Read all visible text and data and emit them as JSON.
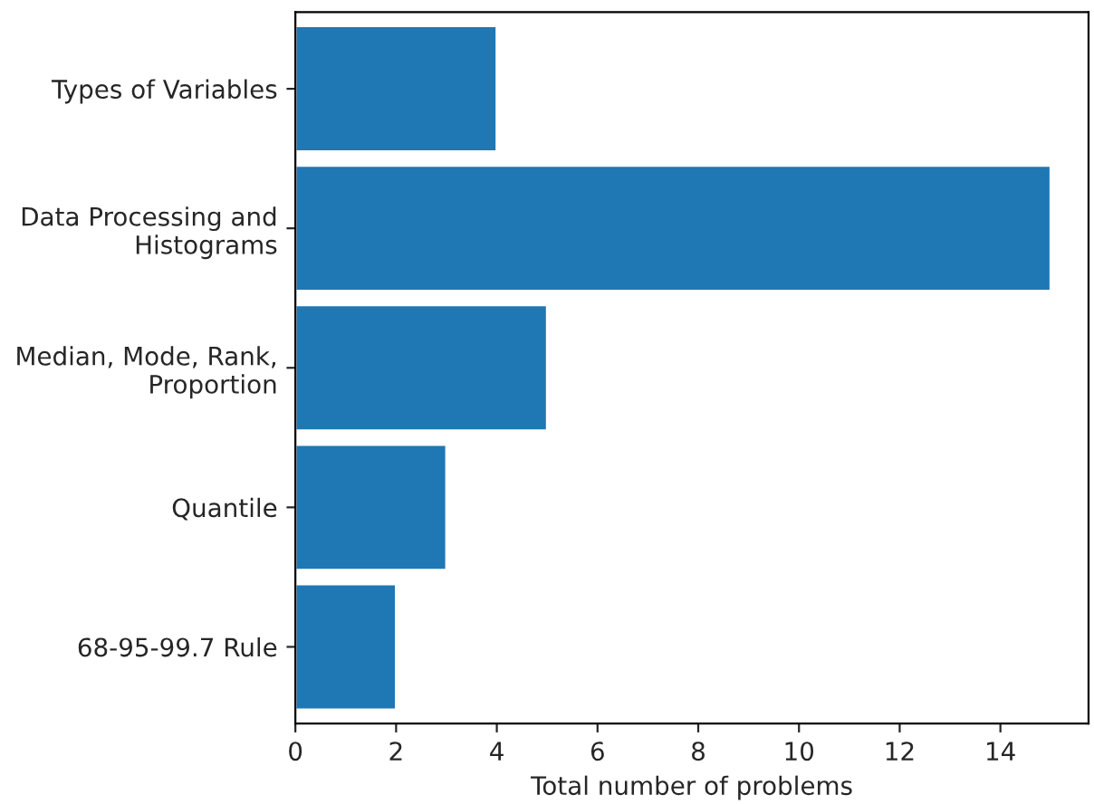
{
  "chart_data": {
    "type": "bar",
    "orientation": "horizontal",
    "xlabel": "Total number of problems",
    "categories": [
      "Types of Variables",
      "Data Processing and\nHistograms",
      "Median, Mode, Rank,\nProportion",
      "Quantile",
      "68-95-99.7 Rule"
    ],
    "values": [
      4,
      15,
      5,
      3,
      2
    ],
    "color": "#1f77b4",
    "xlim": [
      0,
      15.75
    ],
    "xticks": [
      0,
      2,
      4,
      6,
      8,
      10,
      12,
      14
    ],
    "grid": false
  }
}
